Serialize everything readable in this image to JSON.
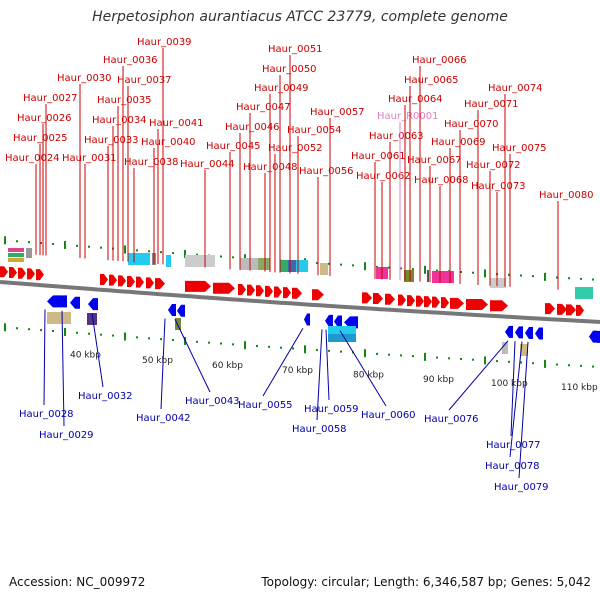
{
  "title": "Herpetosiphon aurantiacus ATCC 23779, complete genome",
  "footer": {
    "accession": "Accession: NC_009972",
    "info": "Topology: circular; Length: 6,346,587 bp; Genes: 5,042"
  },
  "colors": {
    "forward": "#ee0000",
    "reverse": "#0000ee",
    "backbone": "#777777",
    "tick": "#118811",
    "label_top": "#cc0000",
    "label_bottom": "#0000aa",
    "label_rna": "#e080c0"
  },
  "scale_labels": [
    "40 kbp",
    "50 kbp",
    "60 kbp",
    "70 kbp",
    "80 kbp",
    "90 kbp",
    "100 kbp",
    "110 kbp"
  ],
  "top_genes": [
    "Haur_0024",
    "Haur_0025",
    "Haur_0026",
    "Haur_0027",
    "Haur_0030",
    "Haur_0031",
    "Haur_0033",
    "Haur_0034",
    "Haur_0035",
    "Haur_0036",
    "Haur_0037",
    "Haur_0038",
    "Haur_0039",
    "Haur_0040",
    "Haur_0041",
    "Haur_0044",
    "Haur_0045",
    "Haur_0046",
    "Haur_0047",
    "Haur_0048",
    "Haur_0049",
    "Haur_0050",
    "Haur_0051",
    "Haur_0052",
    "Haur_0054",
    "Haur_0056",
    "Haur_0057",
    "Haur_0061",
    "Haur_0062",
    "Haur_0063",
    "Haur_R0001",
    "Haur_0064",
    "Haur_0065",
    "Haur_0066",
    "Haur_0067",
    "Haur_0068",
    "Haur_0069",
    "Haur_0070",
    "Haur_0071",
    "Haur_0072",
    "Haur_0073",
    "Haur_0074",
    "Haur_0075",
    "Haur_0080"
  ],
  "bottom_genes": [
    "Haur_0028",
    "Haur_0029",
    "Haur_0032",
    "Haur_0042",
    "Haur_0043",
    "Haur_0055",
    "Haur_0058",
    "Haur_0059",
    "Haur_0060",
    "Haur_0076",
    "Haur_0077",
    "Haur_0078",
    "Haur_0079"
  ]
}
